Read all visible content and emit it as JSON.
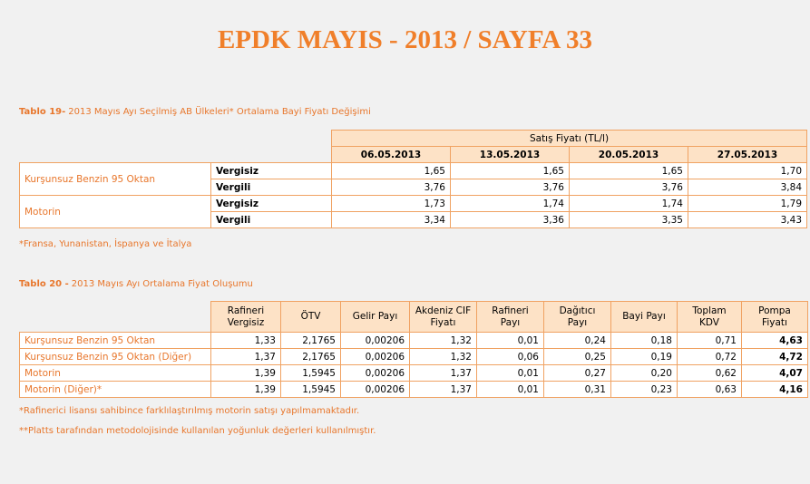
{
  "header": {
    "title": "EPDK MAYIS - 2013 / SAYFA 33"
  },
  "table19": {
    "caption_bold": "Tablo 19-",
    "caption": "2013 Mayıs Ayı Seçilmiş AB Ülkeleri* Ortalama Bayi Fiyatı Değişimi",
    "group_header": "Satış Fiyatı (TL/l)",
    "columns": [
      "06.05.2013",
      "13.05.2013",
      "20.05.2013",
      "27.05.2013"
    ],
    "rows": [
      {
        "label": "Kurşunsuz Benzin 95 Oktan",
        "sub": [
          {
            "label": "Vergisiz",
            "values": [
              "1,65",
              "1,65",
              "1,65",
              "1,70"
            ]
          },
          {
            "label": "Vergili",
            "values": [
              "3,76",
              "3,76",
              "3,76",
              "3,84"
            ]
          }
        ]
      },
      {
        "label": "Motorin",
        "sub": [
          {
            "label": "Vergisiz",
            "values": [
              "1,73",
              "1,74",
              "1,74",
              "1,79"
            ]
          },
          {
            "label": "Vergili",
            "values": [
              "3,34",
              "3,36",
              "3,35",
              "3,43"
            ]
          }
        ]
      }
    ],
    "footnote": "*Fransa, Yunanistan, İspanya ve İtalya"
  },
  "table20": {
    "caption_bold": "Tablo 20 -",
    "caption": "2013 Mayıs Ayı Ortalama Fiyat Oluşumu",
    "columns": [
      "Rafineri Vergisiz",
      "ÖTV",
      "Gelir Payı",
      "Akdeniz CIF Fiyatı",
      "Rafineri Payı",
      "Dağıtıcı Payı",
      "Bayi Payı",
      "Toplam KDV",
      "Pompa Fiyatı"
    ],
    "rows": [
      {
        "label": "Kurşunsuz Benzin 95 Oktan",
        "values": [
          "1,33",
          "2,1765",
          "0,00206",
          "1,32",
          "0,01",
          "0,24",
          "0,18",
          "0,71",
          "4,63"
        ]
      },
      {
        "label": "Kurşunsuz Benzin 95 Oktan (Diğer)",
        "values": [
          "1,37",
          "2,1765",
          "0,00206",
          "1,32",
          "0,06",
          "0,25",
          "0,19",
          "0,72",
          "4,72"
        ]
      },
      {
        "label": "Motorin",
        "values": [
          "1,39",
          "1,5945",
          "0,00206",
          "1,37",
          "0,01",
          "0,27",
          "0,20",
          "0,62",
          "4,07"
        ]
      },
      {
        "label": "Motorin (Diğer)*",
        "values": [
          "1,39",
          "1,5945",
          "0,00206",
          "1,37",
          "0,01",
          "0,31",
          "0,23",
          "0,63",
          "4,16"
        ]
      }
    ],
    "footnotes": [
      "*Rafinerici lisansı sahibince farklılaştırılmış motorin satışı yapılmamaktadır.",
      "**Platts tarafından metodolojisinde kullanılan yoğunluk değerleri kullanılmıştır."
    ]
  }
}
